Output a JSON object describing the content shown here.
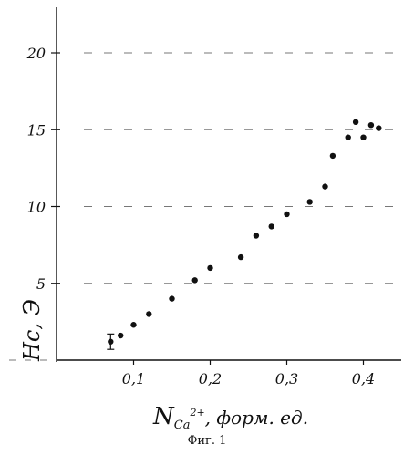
{
  "chart_data": {
    "type": "scatter",
    "xlabel": "N",
    "xlabel_sub": "Ca",
    "xlabel_sup": "2+",
    "xlabel_unit": ", форм. ед.",
    "ylabel": "Hc, Э",
    "xlim": [
      0,
      0.45
    ],
    "ylim": [
      0,
      23
    ],
    "xticks": [
      0.1,
      0.2,
      0.3,
      0.4
    ],
    "xtick_labels": [
      "0,1",
      "0,2",
      "0,3",
      "0,4"
    ],
    "yticks": [
      5,
      10,
      15,
      20
    ],
    "ytick_labels": [
      "5",
      "10",
      "15",
      "20"
    ],
    "grid": "dashed horizontal at y ticks",
    "series": [
      {
        "points": [
          {
            "x": 0.07,
            "y": 1.2,
            "err": 0.5
          },
          {
            "x": 0.083,
            "y": 1.6
          },
          {
            "x": 0.1,
            "y": 2.3
          },
          {
            "x": 0.12,
            "y": 3.0
          },
          {
            "x": 0.15,
            "y": 4.0
          },
          {
            "x": 0.18,
            "y": 5.2
          },
          {
            "x": 0.2,
            "y": 6.0
          },
          {
            "x": 0.24,
            "y": 6.7
          },
          {
            "x": 0.26,
            "y": 8.1
          },
          {
            "x": 0.28,
            "y": 8.7
          },
          {
            "x": 0.3,
            "y": 9.5
          },
          {
            "x": 0.33,
            "y": 10.3
          },
          {
            "x": 0.35,
            "y": 11.3
          },
          {
            "x": 0.36,
            "y": 13.3
          },
          {
            "x": 0.38,
            "y": 14.5
          },
          {
            "x": 0.39,
            "y": 15.5
          },
          {
            "x": 0.4,
            "y": 14.5
          },
          {
            "x": 0.41,
            "y": 15.3
          },
          {
            "x": 0.42,
            "y": 15.1
          }
        ]
      }
    ]
  },
  "caption": "Фиг. 1"
}
